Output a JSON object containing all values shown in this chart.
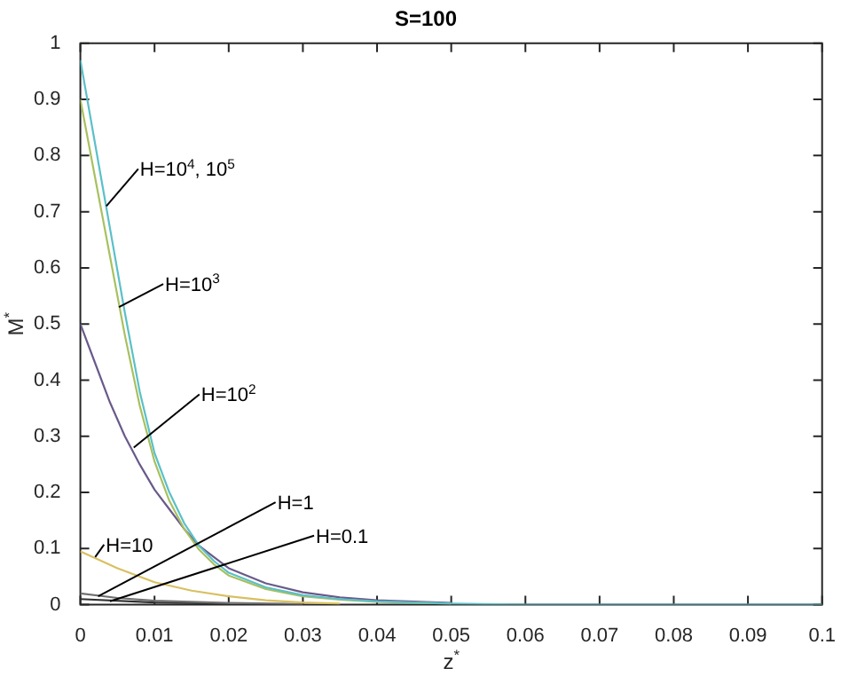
{
  "chart_data": {
    "type": "line",
    "title": "S=100",
    "xlabel": "z$^{*}$",
    "ylabel": "M$^{*}$",
    "xlim": [
      0,
      0.1
    ],
    "xticks": [
      0,
      0.01,
      0.02,
      0.03,
      0.04,
      0.05,
      0.06,
      0.07,
      0.08,
      0.09,
      0.1
    ],
    "ylim": [
      0,
      1
    ],
    "yticks": [
      0,
      0.1,
      0.2,
      0.3,
      0.4,
      0.5,
      0.6,
      0.7,
      0.8,
      0.9,
      1
    ],
    "grid": false,
    "legend": false,
    "marker": "none",
    "line_style": "solid",
    "series": [
      {
        "color": "#5bc0c8",
        "x": [
          0,
          0.002,
          0.004,
          0.006,
          0.008,
          0.01,
          0.012,
          0.014,
          0.016,
          0.018,
          0.02,
          0.025,
          0.03,
          0.035,
          0.04,
          0.05,
          0.06,
          0.1
        ],
        "values": [
          0.97,
          0.82,
          0.67,
          0.52,
          0.38,
          0.27,
          0.2,
          0.145,
          0.105,
          0.078,
          0.057,
          0.031,
          0.017,
          0.01,
          0.006,
          0.002,
          0,
          0
        ]
      },
      {
        "color": "#a8c060",
        "x": [
          0,
          0.002,
          0.004,
          0.006,
          0.008,
          0.01,
          0.012,
          0.014,
          0.016,
          0.018,
          0.02,
          0.025,
          0.03,
          0.035,
          0.04,
          0.05
        ],
        "values": [
          0.9,
          0.76,
          0.62,
          0.48,
          0.355,
          0.255,
          0.185,
          0.135,
          0.098,
          0.072,
          0.052,
          0.028,
          0.015,
          0.009,
          0.005,
          0.002
        ]
      },
      {
        "color": "#6a5a8a",
        "x": [
          0,
          0.002,
          0.004,
          0.006,
          0.008,
          0.01,
          0.012,
          0.014,
          0.016,
          0.018,
          0.02,
          0.025,
          0.03,
          0.035,
          0.04,
          0.05
        ],
        "values": [
          0.5,
          0.43,
          0.36,
          0.3,
          0.25,
          0.205,
          0.17,
          0.135,
          0.105,
          0.085,
          0.065,
          0.038,
          0.022,
          0.013,
          0.008,
          0.003
        ]
      },
      {
        "color": "#d8c060",
        "x": [
          0,
          0.005,
          0.01,
          0.015,
          0.02,
          0.025,
          0.03,
          0.035
        ],
        "values": [
          0.095,
          0.065,
          0.04,
          0.025,
          0.015,
          0.008,
          0.004,
          0.002
        ]
      },
      {
        "color": "#707070",
        "x": [
          0,
          0.005,
          0.01,
          0.02,
          0.03
        ],
        "values": [
          0.02,
          0.012,
          0.007,
          0.003,
          0.001
        ]
      },
      {
        "color": "#303030",
        "x": [
          0,
          0.01,
          0.02
        ],
        "values": [
          0.01,
          0.004,
          0.002
        ]
      }
    ],
    "annotations": [
      {
        "text": "H=10$^{4}$, 10$^{5}$",
        "x": 0.0035,
        "y": 0.71
      },
      {
        "text": "H=10$^{3}$",
        "x": 0.0052,
        "y": 0.53
      },
      {
        "text": "H=10$^{2}$",
        "x": 0.0072,
        "y": 0.28
      },
      {
        "text": "H=10",
        "x": 0.002,
        "y": 0.085
      },
      {
        "text": "H=1",
        "x": 0.0024,
        "y": 0.015
      },
      {
        "text": "H=0.1",
        "x": 0.004,
        "y": 0.006
      }
    ]
  }
}
